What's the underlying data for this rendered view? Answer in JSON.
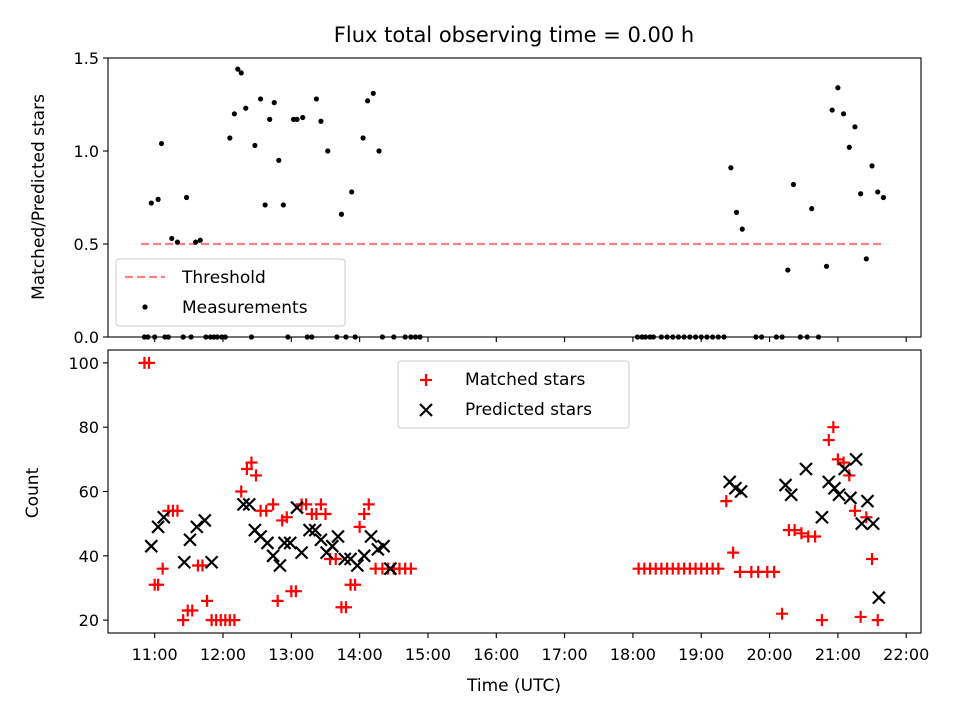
{
  "figure": {
    "title": "Flux total observing time = 0.00 h",
    "xlabel": "Time (UTC)",
    "x_ticks": [
      "11:00",
      "12:00",
      "13:00",
      "14:00",
      "15:00",
      "16:00",
      "17:00",
      "18:00",
      "19:00",
      "20:00",
      "21:00",
      "22:00"
    ]
  },
  "chart_data": [
    {
      "type": "scatter",
      "panel": "top",
      "ylabel": "Matched/Predicted stars",
      "xlim": [
        "10:19",
        "22:13"
      ],
      "ylim": [
        0,
        1.5
      ],
      "y_ticks": [
        "0.0",
        "0.5",
        "1.0",
        "1.5"
      ],
      "legend": {
        "placement": "lower-left",
        "entries": [
          "Threshold",
          "Measurements"
        ]
      },
      "threshold": {
        "name": "Threshold",
        "y": 0.5,
        "x_start": "10:48",
        "x_end": "21:40",
        "color": "#ff8080",
        "style": "dashed"
      },
      "series": [
        {
          "name": "Measurements",
          "color": "#000000",
          "marker": "dot",
          "points": [
            [
              "10:51",
              0.0
            ],
            [
              "10:54",
              0.0
            ],
            [
              "10:57",
              0.72
            ],
            [
              "11:00",
              0.0
            ],
            [
              "11:03",
              0.74
            ],
            [
              "11:06",
              1.04
            ],
            [
              "11:09",
              0.0
            ],
            [
              "11:12",
              0.0
            ],
            [
              "11:15",
              0.53
            ],
            [
              "11:20",
              0.51
            ],
            [
              "11:25",
              0.0
            ],
            [
              "11:28",
              0.75
            ],
            [
              "11:32",
              0.0
            ],
            [
              "11:36",
              0.51
            ],
            [
              "11:40",
              0.52
            ],
            [
              "11:45",
              0.0
            ],
            [
              "11:49",
              0.0
            ],
            [
              "11:52",
              0.0
            ],
            [
              "11:55",
              0.0
            ],
            [
              "11:59",
              0.0
            ],
            [
              "12:02",
              0.0
            ],
            [
              "12:06",
              1.07
            ],
            [
              "12:10",
              1.2
            ],
            [
              "12:13",
              1.44
            ],
            [
              "12:16",
              1.42
            ],
            [
              "12:20",
              1.23
            ],
            [
              "12:25",
              0.0
            ],
            [
              "12:28",
              1.03
            ],
            [
              "12:33",
              1.28
            ],
            [
              "12:37",
              0.71
            ],
            [
              "12:41",
              1.17
            ],
            [
              "12:45",
              1.26
            ],
            [
              "12:49",
              0.95
            ],
            [
              "12:53",
              0.71
            ],
            [
              "12:57",
              0.0
            ],
            [
              "13:02",
              1.17
            ],
            [
              "13:05",
              1.17
            ],
            [
              "13:10",
              1.18
            ],
            [
              "13:14",
              0.0
            ],
            [
              "13:18",
              0.0
            ],
            [
              "13:22",
              1.28
            ],
            [
              "13:26",
              1.16
            ],
            [
              "13:32",
              1.0
            ],
            [
              "13:40",
              0.0
            ],
            [
              "13:44",
              0.66
            ],
            [
              "13:48",
              0.0
            ],
            [
              "13:53",
              0.78
            ],
            [
              "13:56",
              0.0
            ],
            [
              "14:03",
              1.07
            ],
            [
              "14:07",
              1.27
            ],
            [
              "14:12",
              1.31
            ],
            [
              "14:17",
              1.0
            ],
            [
              "14:20",
              0.0
            ],
            [
              "14:30",
              0.0
            ],
            [
              "14:40",
              0.0
            ],
            [
              "14:45",
              0.0
            ],
            [
              "14:49",
              0.0
            ],
            [
              "14:53",
              0.0
            ],
            [
              "18:04",
              0.0
            ],
            [
              "18:08",
              0.0
            ],
            [
              "18:11",
              0.0
            ],
            [
              "18:15",
              0.0
            ],
            [
              "18:18",
              0.0
            ],
            [
              "18:25",
              0.0
            ],
            [
              "18:30",
              0.0
            ],
            [
              "18:35",
              0.0
            ],
            [
              "18:40",
              0.0
            ],
            [
              "18:45",
              0.0
            ],
            [
              "18:50",
              0.0
            ],
            [
              "18:55",
              0.0
            ],
            [
              "19:00",
              0.0
            ],
            [
              "19:05",
              0.0
            ],
            [
              "19:10",
              0.0
            ],
            [
              "19:15",
              0.0
            ],
            [
              "19:20",
              0.0
            ],
            [
              "19:26",
              0.91
            ],
            [
              "19:31",
              0.67
            ],
            [
              "19:36",
              0.58
            ],
            [
              "19:48",
              0.0
            ],
            [
              "19:53",
              0.0
            ],
            [
              "20:06",
              0.0
            ],
            [
              "20:11",
              0.0
            ],
            [
              "20:16",
              0.36
            ],
            [
              "20:21",
              0.82
            ],
            [
              "20:27",
              0.0
            ],
            [
              "20:33",
              0.0
            ],
            [
              "20:37",
              0.69
            ],
            [
              "20:43",
              0.0
            ],
            [
              "20:50",
              0.38
            ],
            [
              "20:55",
              1.22
            ],
            [
              "21:00",
              1.34
            ],
            [
              "21:05",
              1.2
            ],
            [
              "21:10",
              1.02
            ],
            [
              "21:15",
              1.13
            ],
            [
              "21:20",
              0.77
            ],
            [
              "21:25",
              0.42
            ],
            [
              "21:30",
              0.92
            ],
            [
              "21:35",
              0.78
            ],
            [
              "21:40",
              0.75
            ]
          ]
        }
      ]
    },
    {
      "type": "scatter",
      "panel": "bottom",
      "ylabel": "Count",
      "xlabel": "Time (UTC)",
      "xlim": [
        "10:19",
        "22:13"
      ],
      "ylim": [
        16,
        104
      ],
      "y_ticks": [
        "20",
        "40",
        "60",
        "80",
        "100"
      ],
      "legend": {
        "placement": "upper-center",
        "entries": [
          "Matched stars",
          "Predicted stars"
        ]
      },
      "series": [
        {
          "name": "Matched stars",
          "color": "#ff0000",
          "marker": "plus",
          "points": [
            [
              "10:51",
              100
            ],
            [
              "10:55",
              100
            ],
            [
              "11:00",
              31
            ],
            [
              "11:03",
              31
            ],
            [
              "11:07",
              36
            ],
            [
              "11:12",
              54
            ],
            [
              "11:16",
              54
            ],
            [
              "11:20",
              54
            ],
            [
              "11:25",
              20
            ],
            [
              "11:29",
              23
            ],
            [
              "11:33",
              23
            ],
            [
              "11:38",
              37
            ],
            [
              "11:42",
              37
            ],
            [
              "11:46",
              26
            ],
            [
              "11:50",
              20
            ],
            [
              "11:54",
              20
            ],
            [
              "11:58",
              20
            ],
            [
              "12:02",
              20
            ],
            [
              "12:06",
              20
            ],
            [
              "12:10",
              20
            ],
            [
              "12:16",
              60
            ],
            [
              "12:21",
              67
            ],
            [
              "12:25",
              69
            ],
            [
              "12:29",
              65
            ],
            [
              "12:33",
              54
            ],
            [
              "12:38",
              54
            ],
            [
              "12:44",
              56
            ],
            [
              "12:48",
              26
            ],
            [
              "12:52",
              51
            ],
            [
              "12:56",
              52
            ],
            [
              "13:00",
              29
            ],
            [
              "13:04",
              29
            ],
            [
              "13:09",
              56
            ],
            [
              "13:13",
              56
            ],
            [
              "13:18",
              53
            ],
            [
              "13:22",
              53
            ],
            [
              "13:26",
              56
            ],
            [
              "13:30",
              53
            ],
            [
              "13:34",
              39
            ],
            [
              "13:39",
              39
            ],
            [
              "13:44",
              24
            ],
            [
              "13:48",
              24
            ],
            [
              "13:52",
              31
            ],
            [
              "13:56",
              31
            ],
            [
              "14:00",
              49
            ],
            [
              "14:04",
              53
            ],
            [
              "14:08",
              56
            ],
            [
              "14:14",
              36
            ],
            [
              "14:20",
              36
            ],
            [
              "14:25",
              36
            ],
            [
              "14:30",
              36
            ],
            [
              "14:35",
              36
            ],
            [
              "14:40",
              36
            ],
            [
              "14:45",
              36
            ],
            [
              "18:05",
              36
            ],
            [
              "18:10",
              36
            ],
            [
              "18:15",
              36
            ],
            [
              "18:20",
              36
            ],
            [
              "18:25",
              36
            ],
            [
              "18:30",
              36
            ],
            [
              "18:35",
              36
            ],
            [
              "18:40",
              36
            ],
            [
              "18:45",
              36
            ],
            [
              "18:50",
              36
            ],
            [
              "18:55",
              36
            ],
            [
              "19:00",
              36
            ],
            [
              "19:05",
              36
            ],
            [
              "19:10",
              36
            ],
            [
              "19:15",
              36
            ],
            [
              "19:22",
              57
            ],
            [
              "19:28",
              41
            ],
            [
              "19:34",
              35
            ],
            [
              "19:44",
              35
            ],
            [
              "19:50",
              35
            ],
            [
              "19:58",
              35
            ],
            [
              "20:04",
              35
            ],
            [
              "20:11",
              22
            ],
            [
              "20:17",
              48
            ],
            [
              "20:22",
              48
            ],
            [
              "20:28",
              47
            ],
            [
              "20:34",
              46
            ],
            [
              "20:40",
              46
            ],
            [
              "20:46",
              20
            ],
            [
              "20:52",
              76
            ],
            [
              "20:56",
              80
            ],
            [
              "21:00",
              70
            ],
            [
              "21:05",
              69
            ],
            [
              "21:10",
              65
            ],
            [
              "21:15",
              54
            ],
            [
              "21:20",
              21
            ],
            [
              "21:25",
              52
            ],
            [
              "21:30",
              39
            ],
            [
              "21:35",
              20
            ]
          ]
        },
        {
          "name": "Predicted stars",
          "color": "#000000",
          "marker": "cross",
          "points": [
            [
              "10:57",
              43
            ],
            [
              "11:03",
              49
            ],
            [
              "11:08",
              52
            ],
            [
              "11:26",
              38
            ],
            [
              "11:31",
              45
            ],
            [
              "11:37",
              49
            ],
            [
              "11:44",
              51
            ],
            [
              "11:50",
              38
            ],
            [
              "12:18",
              56
            ],
            [
              "12:23",
              56
            ],
            [
              "12:28",
              48
            ],
            [
              "12:33",
              46
            ],
            [
              "12:39",
              44
            ],
            [
              "12:44",
              40
            ],
            [
              "12:50",
              37
            ],
            [
              "12:54",
              44
            ],
            [
              "12:59",
              44
            ],
            [
              "13:05",
              55
            ],
            [
              "13:09",
              41
            ],
            [
              "13:16",
              48
            ],
            [
              "13:21",
              48
            ],
            [
              "13:26",
              45
            ],
            [
              "13:31",
              41
            ],
            [
              "13:36",
              43
            ],
            [
              "13:41",
              46
            ],
            [
              "13:47",
              39
            ],
            [
              "13:52",
              39
            ],
            [
              "13:58",
              37
            ],
            [
              "14:04",
              40
            ],
            [
              "14:10",
              46
            ],
            [
              "14:16",
              42
            ],
            [
              "14:21",
              43
            ],
            [
              "14:27",
              36
            ],
            [
              "19:25",
              63
            ],
            [
              "19:30",
              61
            ],
            [
              "19:35",
              60
            ],
            [
              "20:14",
              62
            ],
            [
              "20:19",
              59
            ],
            [
              "20:32",
              67
            ],
            [
              "20:46",
              52
            ],
            [
              "20:52",
              63
            ],
            [
              "20:57",
              61
            ],
            [
              "21:01",
              59
            ],
            [
              "21:06",
              67
            ],
            [
              "21:11",
              58
            ],
            [
              "21:16",
              70
            ],
            [
              "21:21",
              50
            ],
            [
              "21:26",
              57
            ],
            [
              "21:31",
              50
            ],
            [
              "21:36",
              27
            ]
          ]
        }
      ]
    }
  ]
}
